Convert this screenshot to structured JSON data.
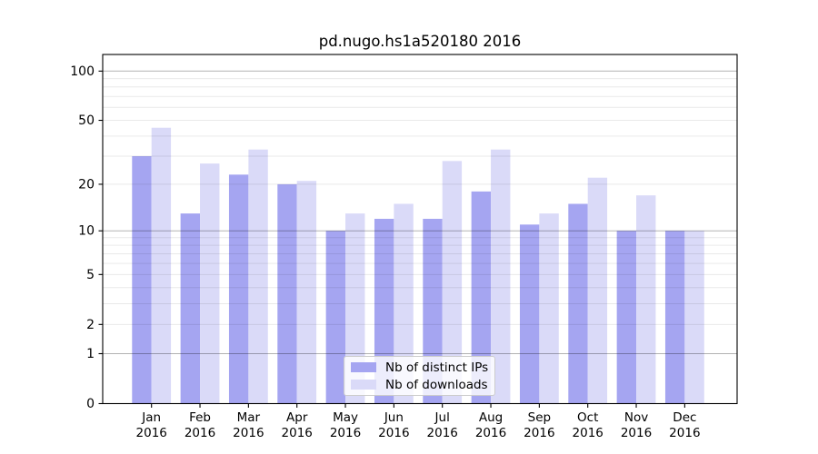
{
  "title": "pd.nugo.hs1a520180 2016",
  "chart_data": {
    "type": "bar",
    "title": "pd.nugo.hs1a520180 2016",
    "categories": [
      {
        "month": "Jan",
        "year": "2016"
      },
      {
        "month": "Feb",
        "year": "2016"
      },
      {
        "month": "Mar",
        "year": "2016"
      },
      {
        "month": "Apr",
        "year": "2016"
      },
      {
        "month": "May",
        "year": "2016"
      },
      {
        "month": "Jun",
        "year": "2016"
      },
      {
        "month": "Jul",
        "year": "2016"
      },
      {
        "month": "Aug",
        "year": "2016"
      },
      {
        "month": "Sep",
        "year": "2016"
      },
      {
        "month": "Oct",
        "year": "2016"
      },
      {
        "month": "Nov",
        "year": "2016"
      },
      {
        "month": "Dec",
        "year": "2016"
      }
    ],
    "series": [
      {
        "name": "Nb of distinct IPs",
        "color": "#a5a5f1",
        "values": [
          30,
          13,
          23,
          20,
          10,
          12,
          12,
          18,
          11,
          15,
          10,
          10
        ]
      },
      {
        "name": "Nb of downloads",
        "color": "#dadaf8",
        "values": [
          45,
          27,
          33,
          21,
          13,
          15,
          28,
          33,
          13,
          22,
          17,
          10
        ]
      }
    ],
    "yscale": "log1p",
    "ylim": [
      0,
      126
    ],
    "y_tick_values": [
      0,
      1,
      2,
      5,
      10,
      20,
      50,
      100
    ],
    "y_tick_labels": [
      "0",
      "1",
      "2",
      "5",
      "10",
      "20",
      "50",
      "100"
    ],
    "y_major_gridlines": [
      1,
      10,
      100
    ],
    "y_minor_gridlines": [
      2,
      3,
      4,
      5,
      6,
      7,
      8,
      9,
      20,
      30,
      40,
      50,
      60,
      70,
      80,
      90
    ],
    "grid": true,
    "legend_position": "lower center",
    "xlabel": "",
    "ylabel": ""
  },
  "colors": {
    "spine": "#000000",
    "grid_major": "rgba(0,0,0,0.30)",
    "grid_minor": "rgba(0,0,0,0.085)",
    "tick_text": "#000000",
    "background": "#ffffff"
  }
}
